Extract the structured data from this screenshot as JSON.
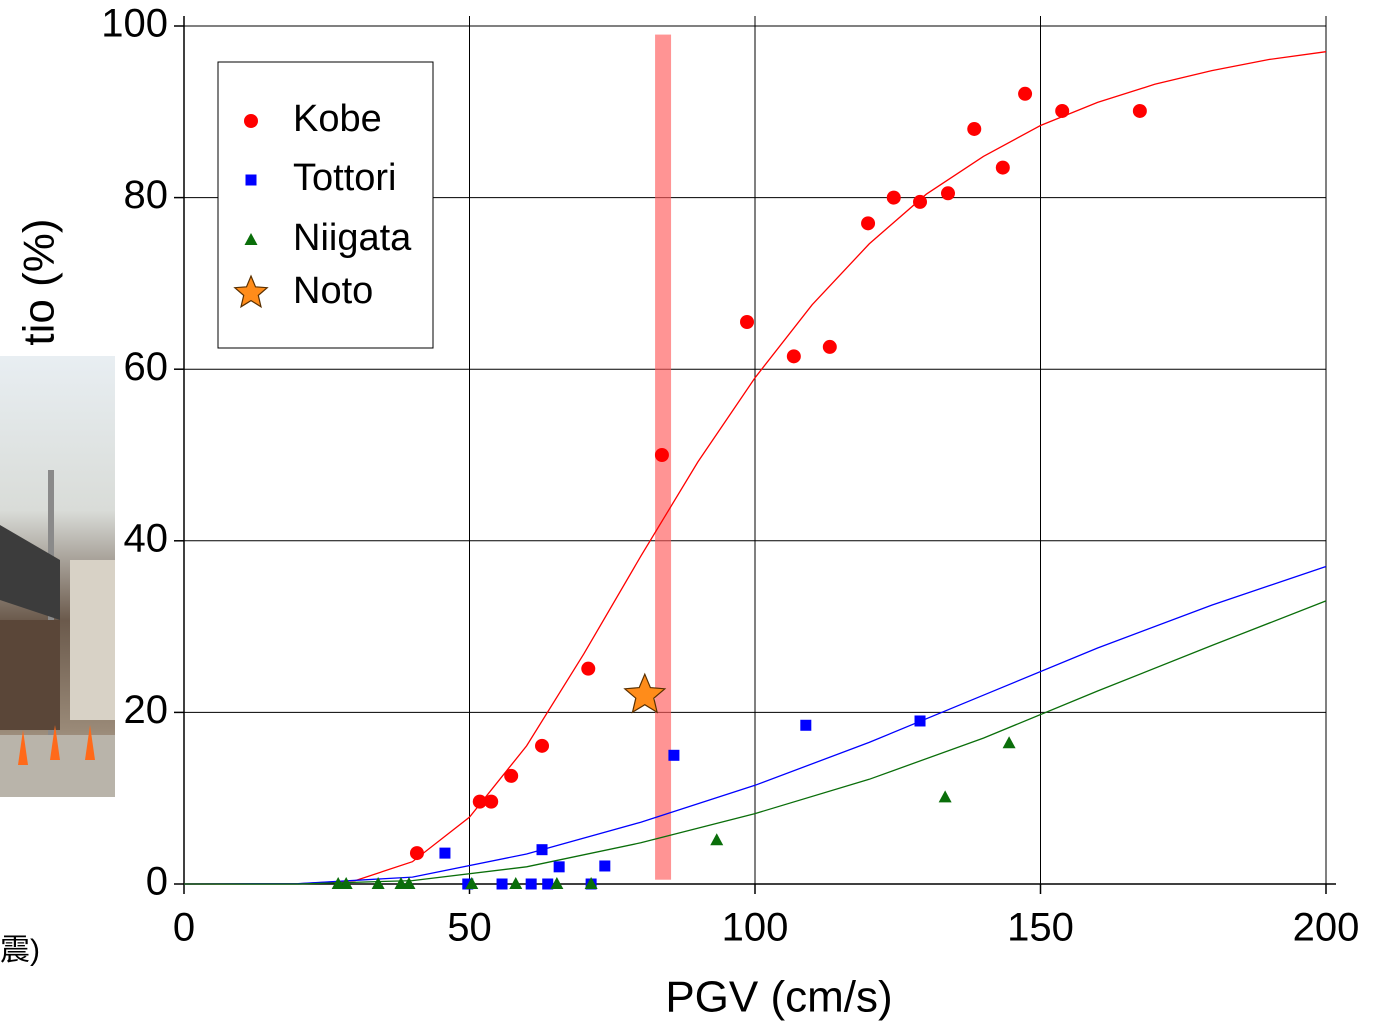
{
  "chart_data": {
    "type": "scatter",
    "x_label": "PGV (cm/s)",
    "y_label": "tio (%)",
    "side_note": "震)",
    "xlim": [
      0,
      200
    ],
    "xticks": [
      0,
      50,
      100,
      150,
      200
    ],
    "ylim": [
      0,
      100
    ],
    "yticks": [
      0,
      20,
      40,
      60,
      80,
      100
    ],
    "grid": true,
    "legend": "upper left",
    "series": [
      {
        "name": "Kobe",
        "color": "#ff0000",
        "marker": "circle",
        "x": [
          40.8,
          51.8,
          53.8,
          57.3,
          62.7,
          70.8,
          83.7,
          98.6,
          106.8,
          113.1,
          119.8,
          124.3,
          128.9,
          133.8,
          138.4,
          143.4,
          147.3,
          153.8,
          167.4
        ],
        "values": [
          3.6,
          9.6,
          9.6,
          12.6,
          16.1,
          25.1,
          50,
          65.5,
          61.5,
          62.6,
          77,
          80,
          79.5,
          80.5,
          88,
          83.5,
          92.1,
          90.1,
          90.1
        ]
      },
      {
        "name": "Tottori",
        "color": "#0000ff",
        "marker": "square",
        "x": [
          45.7,
          49.7,
          55.7,
          60.8,
          62.7,
          63.7,
          65.7,
          71.3,
          73.7,
          85.8,
          108.9,
          128.9
        ],
        "values": [
          3.6,
          0,
          0,
          0,
          4,
          0,
          2,
          0,
          2.1,
          15,
          18.5,
          19
        ]
      },
      {
        "name": "Niigata",
        "color": "#0a6e0a",
        "marker": "triangle",
        "x": [
          27,
          28.4,
          34,
          38,
          39.4,
          50.4,
          58.1,
          65.3,
          71.3,
          93.3,
          133.3,
          144.5
        ],
        "values": [
          0,
          0,
          0,
          0,
          0,
          0,
          0,
          0,
          0,
          5.1,
          10.1,
          16.4
        ]
      },
      {
        "name": "Noto",
        "color": "#ff8c1a",
        "marker": "star",
        "x": [
          80.7
        ],
        "values": [
          22
        ]
      }
    ],
    "fits": [
      {
        "color": "#ff0000",
        "x": [
          0,
          20,
          30,
          40,
          50,
          60,
          70,
          80,
          90,
          100,
          110,
          120,
          130,
          140,
          150,
          160,
          170,
          180,
          190,
          200
        ],
        "values": [
          0,
          0.02,
          0.4,
          2.6,
          7.8,
          16.1,
          26.8,
          38.2,
          49.2,
          59,
          67.5,
          74.6,
          80.4,
          84.8,
          88.4,
          91.1,
          93.2,
          94.8,
          96.1,
          97
        ]
      },
      {
        "color": "#0000ff",
        "x": [
          0,
          20,
          40,
          60,
          80,
          100,
          120,
          140,
          160,
          180,
          200
        ],
        "values": [
          0,
          0.05,
          0.8,
          3.5,
          7.2,
          11.5,
          16.5,
          22,
          27.5,
          32.5,
          37
        ]
      },
      {
        "color": "#0a6e0a",
        "x": [
          0,
          20,
          40,
          60,
          80,
          100,
          120,
          140,
          160,
          180,
          200
        ],
        "values": [
          0,
          0,
          0.4,
          2,
          4.8,
          8.2,
          12.2,
          17,
          22.5,
          27.8,
          33
        ]
      }
    ],
    "band": {
      "color": "#ff5a5a",
      "x": [
        82.5,
        85.3
      ],
      "y": [
        0.5,
        99
      ]
    }
  }
}
